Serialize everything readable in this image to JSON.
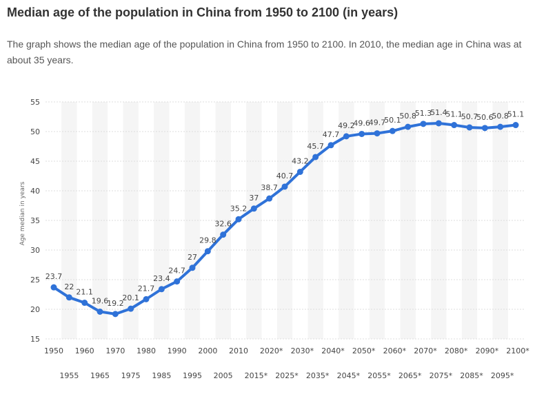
{
  "header": {
    "title": "Median age of the population in China from 1950 to 2100 (in years)",
    "description": "The graph shows the median age of the population in China from 1950 to 2100. In 2010, the median age in China was at about 35 years."
  },
  "chart_data": {
    "type": "line",
    "title": "Median age of the population in China from 1950 to 2100 (in years)",
    "ylabel": "Age median in years",
    "xlabel": "",
    "ylim": [
      15,
      55
    ],
    "yticks": [
      15,
      20,
      25,
      30,
      35,
      40,
      45,
      50,
      55
    ],
    "grid": true,
    "legend": "none",
    "color": "#2f72d8",
    "categories": [
      "1950",
      "1955",
      "1960",
      "1965",
      "1970",
      "1975",
      "1980",
      "1985",
      "1990",
      "1995",
      "2000",
      "2005",
      "2010",
      "2015*",
      "2020*",
      "2025*",
      "2030*",
      "2035*",
      "2040*",
      "2045*",
      "2050*",
      "2055*",
      "2060*",
      "2065*",
      "2070*",
      "2075*",
      "2080*",
      "2085*",
      "2090*",
      "2095*",
      "2100*"
    ],
    "values": [
      23.7,
      22,
      21.1,
      19.6,
      19.2,
      20.1,
      21.7,
      23.4,
      24.7,
      27,
      29.8,
      32.6,
      35.2,
      37,
      38.7,
      40.7,
      43.2,
      45.7,
      47.7,
      49.2,
      49.6,
      49.7,
      50.1,
      50.8,
      51.3,
      51.4,
      51.1,
      50.7,
      50.6,
      50.8,
      51.1
    ],
    "value_labels": [
      "23.7",
      "22",
      "21.1",
      "19.6",
      "19.2",
      "20.1",
      "21.7",
      "23.4",
      "24.7",
      "27",
      "29.8",
      "32.6",
      "35.2",
      "37",
      "38.7",
      "40.7",
      "43.2",
      "45.7",
      "47.7",
      "49.2",
      "49.6",
      "49.7",
      "50.1",
      "50.8",
      "51.3",
      "51.4",
      "51.1",
      "50.7",
      "50.6",
      "50.8",
      "51.1"
    ]
  }
}
